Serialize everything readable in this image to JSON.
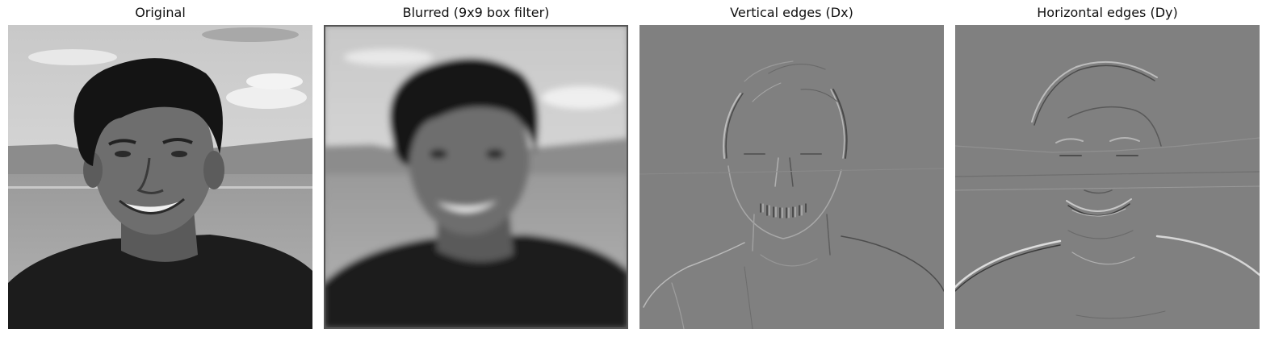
{
  "panels": [
    {
      "title": "Original",
      "style": "original"
    },
    {
      "title": "Blurred (9x9 box filter)",
      "style": "blurred"
    },
    {
      "title": "Vertical edges (Dx)",
      "style": "edges-x"
    },
    {
      "title": "Horizontal edges (Dy)",
      "style": "edges-y"
    }
  ],
  "colors": {
    "background": "#ffffff",
    "edge_gray": "#808080"
  }
}
